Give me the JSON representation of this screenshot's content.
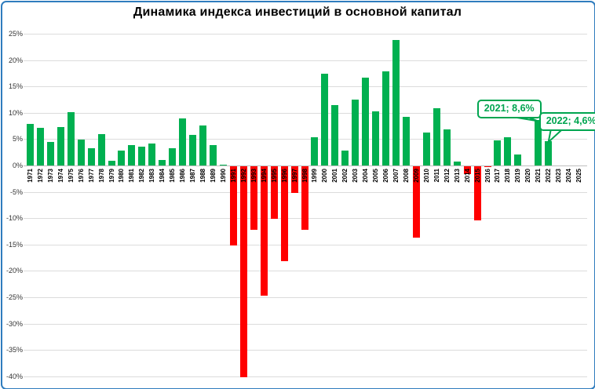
{
  "title": "Динамика индекса инвестиций в основной капитал",
  "colors": {
    "positive_bar": "#00B050",
    "negative_bar": "#FF0000",
    "frame_border": "#2F7CBE",
    "gridline": "#DCDCDC",
    "zero_line": "#BFBFBF",
    "callout_green": "#00A550",
    "title_text": "#000000",
    "axis_text": "#333333"
  },
  "chart_data": {
    "type": "bar",
    "title": "Динамика индекса инвестиций в основной капитал",
    "xlabel": "",
    "ylabel": "",
    "ylim": [
      -40,
      25
    ],
    "ytick_step": 5,
    "grid": true,
    "legend_position": "none",
    "yticks": [
      "25%",
      "20%",
      "15%",
      "10%",
      "5%",
      "0%",
      "-5%",
      "-10%",
      "-15%",
      "-20%",
      "-25%",
      "-30%",
      "-35%",
      "-40%"
    ],
    "categories": [
      "1971",
      "1972",
      "1973",
      "1974",
      "1975",
      "1976",
      "1977",
      "1978",
      "1979",
      "1980",
      "1981",
      "1982",
      "1983",
      "1984",
      "1985",
      "1986",
      "1987",
      "1988",
      "1989",
      "1990",
      "1991",
      "1992",
      "1993",
      "1994",
      "1995",
      "1996",
      "1997",
      "1998",
      "1999",
      "2000",
      "2001",
      "2002",
      "2003",
      "2004",
      "2005",
      "2006",
      "2007",
      "2008",
      "2009",
      "2010",
      "2011",
      "2012",
      "2013",
      "2014",
      "2015",
      "2016",
      "2017",
      "2018",
      "2019",
      "2020",
      "2021",
      "2022",
      "2023",
      "2024",
      "2025"
    ],
    "values": [
      7.9,
      7.2,
      4.4,
      7.3,
      10.1,
      4.9,
      3.3,
      6.0,
      0.9,
      2.9,
      3.9,
      3.6,
      4.2,
      1.1,
      3.3,
      8.9,
      5.8,
      7.6,
      3.9,
      0.1,
      -15.0,
      -40.0,
      -12.0,
      -24.5,
      -10.0,
      -18.0,
      -5.0,
      -12.0,
      5.3,
      17.4,
      11.5,
      2.8,
      12.5,
      16.7,
      10.2,
      17.8,
      23.8,
      9.3,
      -13.5,
      6.3,
      10.8,
      6.8,
      0.8,
      -1.5,
      -10.3,
      -0.2,
      4.8,
      5.4,
      2.1,
      0.0,
      8.6,
      4.6,
      null,
      null,
      null
    ],
    "annotations": [
      {
        "label": "2021; 8,6%",
        "year": "2021",
        "value": 8.6
      },
      {
        "label": "2022; 4,6%",
        "year": "2022",
        "value": 4.6
      }
    ]
  }
}
